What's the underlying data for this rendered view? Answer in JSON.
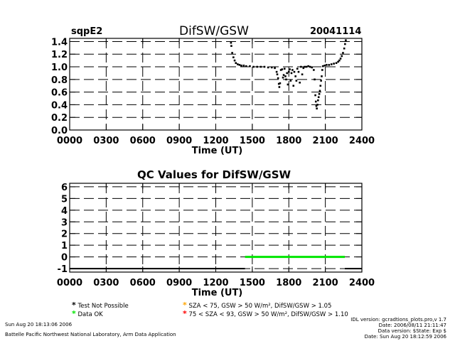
{
  "header": {
    "site": "sqpE2",
    "title": "DifSW/GSW",
    "date": "20041114"
  },
  "chart_data": [
    {
      "type": "scatter",
      "title": "DifSW/GSW",
      "xlabel": "Time (UT)",
      "ylabel": "",
      "xlim": [
        0,
        2400
      ],
      "ylim": [
        0.0,
        1.45
      ],
      "x_ticks": [
        "0000",
        "0300",
        "0600",
        "0900",
        "1200",
        "1500",
        "1800",
        "2100",
        "2400"
      ],
      "y_ticks": [
        "0.0",
        "0.2",
        "0.4",
        "0.6",
        "0.8",
        "1.0",
        "1.2",
        "1.4"
      ],
      "grid": "dashed",
      "series": [
        {
          "color": "#000000",
          "points": [
            [
              1325,
              1.38
            ],
            [
              1328,
              1.33
            ],
            [
              1335,
              1.22
            ],
            [
              1345,
              1.15
            ],
            [
              1355,
              1.1
            ],
            [
              1365,
              1.06
            ],
            [
              1380,
              1.04
            ],
            [
              1395,
              1.03
            ],
            [
              1410,
              1.02
            ],
            [
              1430,
              1.02
            ],
            [
              1450,
              1.01
            ],
            [
              1480,
              1.01
            ],
            [
              1510,
              1.0
            ],
            [
              1540,
              1.0
            ],
            [
              1570,
              1.0
            ],
            [
              1600,
              1.0
            ],
            [
              1630,
              0.99
            ],
            [
              1660,
              0.99
            ],
            [
              1685,
              0.98
            ],
            [
              1700,
              0.92
            ],
            [
              1705,
              0.88
            ],
            [
              1712,
              0.82
            ],
            [
              1718,
              0.73
            ],
            [
              1722,
              0.68
            ],
            [
              1728,
              0.74
            ],
            [
              1735,
              0.95
            ],
            [
              1745,
              0.96
            ],
            [
              1752,
              0.83
            ],
            [
              1758,
              0.87
            ],
            [
              1765,
              0.97
            ],
            [
              1772,
              0.85
            ],
            [
              1778,
              0.8
            ],
            [
              1785,
              0.9
            ],
            [
              1792,
              0.72
            ],
            [
              1800,
              0.92
            ],
            [
              1808,
              0.96
            ],
            [
              1815,
              0.78
            ],
            [
              1822,
              0.9
            ],
            [
              1830,
              0.95
            ],
            [
              1838,
              0.7
            ],
            [
              1845,
              0.92
            ],
            [
              1855,
              0.85
            ],
            [
              1862,
              0.78
            ],
            [
              1870,
              0.97
            ],
            [
              1880,
              0.92
            ],
            [
              1890,
              0.75
            ],
            [
              1900,
              1.0
            ],
            [
              1910,
              0.88
            ],
            [
              1920,
              0.98
            ],
            [
              1930,
              1.0
            ],
            [
              1945,
              1.0
            ],
            [
              1960,
              1.01
            ],
            [
              1975,
              1.0
            ],
            [
              1990,
              0.99
            ],
            [
              2005,
              0.95
            ],
            [
              2012,
              0.8
            ],
            [
              2018,
              0.55
            ],
            [
              2022,
              0.45
            ],
            [
              2026,
              0.38
            ],
            [
              2030,
              0.34
            ],
            [
              2035,
              0.4
            ],
            [
              2040,
              0.47
            ],
            [
              2045,
              0.52
            ],
            [
              2050,
              0.57
            ],
            [
              2055,
              0.62
            ],
            [
              2060,
              0.7
            ],
            [
              2065,
              0.78
            ],
            [
              2070,
              0.85
            ],
            [
              2075,
              0.95
            ],
            [
              2080,
              1.01
            ],
            [
              2095,
              1.02
            ],
            [
              2110,
              1.03
            ],
            [
              2130,
              1.03
            ],
            [
              2150,
              1.04
            ],
            [
              2170,
              1.05
            ],
            [
              2190,
              1.06
            ],
            [
              2205,
              1.08
            ],
            [
              2215,
              1.1
            ],
            [
              2225,
              1.13
            ],
            [
              2235,
              1.17
            ],
            [
              2245,
              1.22
            ],
            [
              2255,
              1.29
            ],
            [
              2262,
              1.36
            ],
            [
              2268,
              1.42
            ]
          ]
        }
      ]
    },
    {
      "type": "line",
      "title": "QC Values for DifSW/GSW",
      "xlabel": "Time (UT)",
      "ylabel": "",
      "xlim": [
        0,
        2400
      ],
      "ylim": [
        -1.3,
        6.3
      ],
      "x_ticks": [
        "0000",
        "0300",
        "0600",
        "0900",
        "1200",
        "1500",
        "1800",
        "2100",
        "2400"
      ],
      "y_ticks": [
        "-1",
        "0",
        "1",
        "2",
        "3",
        "4",
        "5",
        "6"
      ],
      "grid": "dashed",
      "series": [
        {
          "color": "#000000",
          "x": [
            0,
            1440
          ],
          "y": [
            -1,
            -1
          ]
        },
        {
          "color": "#00e600",
          "x": [
            1440,
            2260
          ],
          "y": [
            0,
            0
          ]
        },
        {
          "color": "#000000",
          "x": [
            2260,
            2400
          ],
          "y": [
            -1,
            -1
          ]
        }
      ]
    }
  ],
  "legend": [
    {
      "symbol": "*",
      "color": "#000000",
      "text": "Test Not Possible"
    },
    {
      "symbol": "*",
      "color": "#00e600",
      "text": "Data OK"
    },
    {
      "symbol": "*",
      "color": "#ffa500",
      "text": "SZA < 75, GSW > 50 W/m², DifSW/GSW > 1.05"
    },
    {
      "symbol": "*",
      "color": "#ff0000",
      "text": "75 < SZA < 93, GSW > 50 W/m², DifSW/GSW > 1.10"
    }
  ],
  "footer": {
    "generated": "Sun Aug 20 18:13:06 2006",
    "institution": "Battelle Pacific Northwest National Laboratory, Arm Data Application",
    "idl_version": "IDL version: gcradtions_plots.pro,v 1.7",
    "idl_date": "Date: 2006/08/11 21:11:47",
    "data_version": "Data version: $State: Exp $",
    "data_date": "Date: Sun Aug 20 18:12:59 2006"
  }
}
